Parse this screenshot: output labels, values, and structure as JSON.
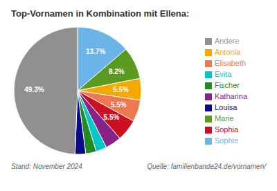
{
  "chart_data": {
    "type": "pie",
    "title": "Top-Vornamen in Kombination mit Ellena:",
    "categories": [
      "Sophie",
      "Marie",
      "Antonia",
      "Elisabeth",
      "Sophia",
      "Katharina",
      "Evita",
      "Fischer",
      "Louisa",
      "Andere"
    ],
    "values": [
      13.7,
      8.2,
      5.5,
      5.5,
      5.5,
      4.1,
      2.7,
      2.7,
      2.7,
      49.3
    ],
    "value_labels": [
      "13.7%",
      "8.2%",
      "5.5%",
      "5.5%",
      "5.5%",
      null,
      null,
      null,
      null,
      "49.3%"
    ],
    "colors": [
      "#6ab4e8",
      "#5a9a1e",
      "#f5a800",
      "#f07850",
      "#cc1020",
      "#882288",
      "#00c8c8",
      "#228B22",
      "#0a0a8c",
      "#909090"
    ],
    "data_labels": true,
    "legend": "right",
    "annotations": [
      "Stand: November 2024",
      "Quelle: familienbande24.de/vornamen/"
    ]
  }
}
